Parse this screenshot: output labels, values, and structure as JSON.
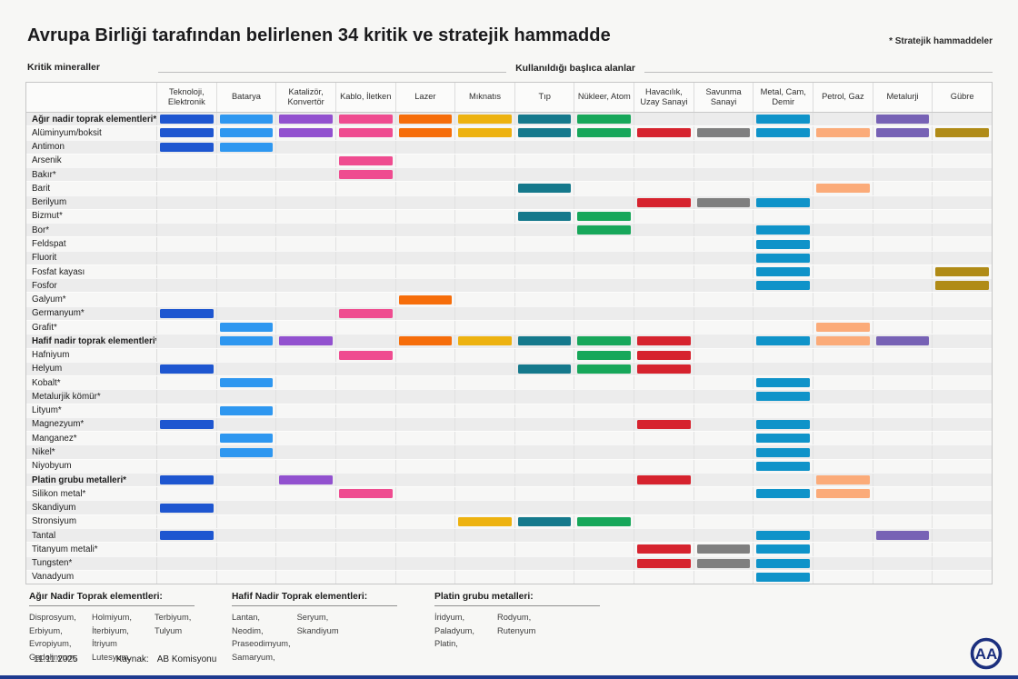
{
  "header": {
    "title": "Avrupa Birliği tarafından belirlenen 34 kritik ve stratejik hammadde",
    "note": "* Stratejik hammaddeler"
  },
  "axis": {
    "left": "Kritik mineraller",
    "top": "Kullanıldığı başlıca alanlar"
  },
  "chart_data": {
    "type": "heatmap",
    "title": "Avrupa Birliği tarafından belirlenen 34 kritik ve stratejik hammadde",
    "note": "* Stratejik hammaddeler",
    "x_axis_label": "Kullanıldığı başlıca alanlar",
    "y_axis_label": "Kritik mineraller",
    "columns": [
      {
        "label": "Teknoloji, Elektronik",
        "color": "#1e56d0"
      },
      {
        "label": "Batarya",
        "color": "#2e97f0"
      },
      {
        "label": "Katalizör, Konvertör",
        "color": "#9251cf"
      },
      {
        "label": "Kablo, İletken",
        "color": "#ef4c90"
      },
      {
        "label": "Lazer",
        "color": "#f66d0a"
      },
      {
        "label": "Mıknatıs",
        "color": "#edb210"
      },
      {
        "label": "Tıp",
        "color": "#15798c"
      },
      {
        "label": "Nükleer, Atom",
        "color": "#17a75a"
      },
      {
        "label": "Havacılık, Uzay Sanayi",
        "color": "#d6232e"
      },
      {
        "label": "Savunma Sanayi",
        "color": "#7f7f7f"
      },
      {
        "label": "Metal, Cam, Demir",
        "color": "#0f93c9"
      },
      {
        "label": "Petrol, Gaz",
        "color": "#fbab79"
      },
      {
        "label": "Metalurji",
        "color": "#7762b5"
      },
      {
        "label": "Gübre",
        "color": "#b08b17"
      }
    ],
    "rows": [
      {
        "label": "Ağır nadir toprak elementleri*",
        "bold": true,
        "uses": [
          1,
          2,
          3,
          4,
          5,
          6,
          7,
          8,
          11,
          13
        ]
      },
      {
        "label": "Alüminyum/boksit",
        "bold": false,
        "uses": [
          1,
          2,
          3,
          4,
          5,
          6,
          7,
          8,
          9,
          10,
          11,
          12,
          13,
          14
        ]
      },
      {
        "label": "Antimon",
        "bold": false,
        "uses": [
          1,
          2
        ]
      },
      {
        "label": "Arsenik",
        "bold": false,
        "uses": [
          4
        ]
      },
      {
        "label": "Bakır*",
        "bold": false,
        "uses": [
          4
        ]
      },
      {
        "label": "Barit",
        "bold": false,
        "uses": [
          7,
          12
        ]
      },
      {
        "label": "Berilyum",
        "bold": false,
        "uses": [
          9,
          10,
          11
        ]
      },
      {
        "label": "Bizmut*",
        "bold": false,
        "uses": [
          7,
          8
        ]
      },
      {
        "label": "Bor*",
        "bold": false,
        "uses": [
          8,
          11
        ]
      },
      {
        "label": "Feldspat",
        "bold": false,
        "uses": [
          11
        ]
      },
      {
        "label": "Fluorit",
        "bold": false,
        "uses": [
          11
        ]
      },
      {
        "label": "Fosfat kayası",
        "bold": false,
        "uses": [
          11,
          14
        ]
      },
      {
        "label": "Fosfor",
        "bold": false,
        "uses": [
          11,
          14
        ]
      },
      {
        "label": "Galyum*",
        "bold": false,
        "uses": [
          5
        ]
      },
      {
        "label": "Germanyum*",
        "bold": false,
        "uses": [
          1,
          4
        ]
      },
      {
        "label": "Grafit*",
        "bold": false,
        "uses": [
          2,
          12
        ]
      },
      {
        "label": "Hafif nadir toprak elementleri*",
        "bold": true,
        "uses": [
          2,
          3,
          5,
          6,
          7,
          8,
          9,
          11,
          12,
          13
        ]
      },
      {
        "label": "Hafniyum",
        "bold": false,
        "uses": [
          4,
          8,
          9
        ]
      },
      {
        "label": "Helyum",
        "bold": false,
        "uses": [
          1,
          7,
          8,
          9
        ]
      },
      {
        "label": "Kobalt*",
        "bold": false,
        "uses": [
          2,
          11
        ]
      },
      {
        "label": "Metalurjik kömür*",
        "bold": false,
        "uses": [
          11
        ]
      },
      {
        "label": "Lityum*",
        "bold": false,
        "uses": [
          2
        ]
      },
      {
        "label": "Magnezyum*",
        "bold": false,
        "uses": [
          1,
          9,
          11
        ]
      },
      {
        "label": "Manganez*",
        "bold": false,
        "uses": [
          2,
          11
        ]
      },
      {
        "label": "Nikel*",
        "bold": false,
        "uses": [
          2,
          11
        ]
      },
      {
        "label": "Niyobyum",
        "bold": false,
        "uses": [
          11
        ]
      },
      {
        "label": "Platin grubu metalleri*",
        "bold": true,
        "uses": [
          1,
          3,
          9,
          12
        ]
      },
      {
        "label": "Silikon metal*",
        "bold": false,
        "uses": [
          4,
          11,
          12
        ]
      },
      {
        "label": "Skandiyum",
        "bold": false,
        "uses": [
          1
        ]
      },
      {
        "label": "Stronsiyum",
        "bold": false,
        "uses": [
          6,
          7,
          8
        ]
      },
      {
        "label": "Tantal",
        "bold": false,
        "uses": [
          1,
          11,
          13
        ]
      },
      {
        "label": "Titanyum metali*",
        "bold": false,
        "uses": [
          9,
          10,
          11
        ]
      },
      {
        "label": "Tungsten*",
        "bold": false,
        "uses": [
          9,
          10,
          11
        ]
      },
      {
        "label": "Vanadyum",
        "bold": false,
        "uses": [
          11
        ]
      }
    ]
  },
  "legend_groups": [
    {
      "title": "Ağır Nadir Toprak elementleri:",
      "columns": [
        [
          "Disprosyum,",
          "Erbiyum,",
          "Evropiyum,",
          "Gadolinyum,"
        ],
        [
          "Holmiyum,",
          "İterbiyum,",
          "İtriyum",
          "Lutesyum,"
        ],
        [
          "Terbiyum,",
          "Tulyum"
        ]
      ]
    },
    {
      "title": "Hafif Nadir Toprak elementleri:",
      "columns": [
        [
          "Lantan,",
          "Neodim,",
          "Praseodimyum,",
          "Samaryum,"
        ],
        [
          "Seryum,",
          "Skandiyum"
        ]
      ]
    },
    {
      "title": "Platin grubu metalleri:",
      "columns": [
        [
          "İridyum,",
          "Paladyum,",
          "Platin,"
        ],
        [
          "Rodyum,",
          "Rutenyum"
        ]
      ]
    }
  ],
  "footer": {
    "date": "11.11.2025",
    "source_label": "Kaynak:",
    "source_value": "AB Komisyonu"
  },
  "logo_text": "AA",
  "colors": {
    "bottom_bar": "#1e3a8f",
    "logo": "#1b2f7e"
  }
}
